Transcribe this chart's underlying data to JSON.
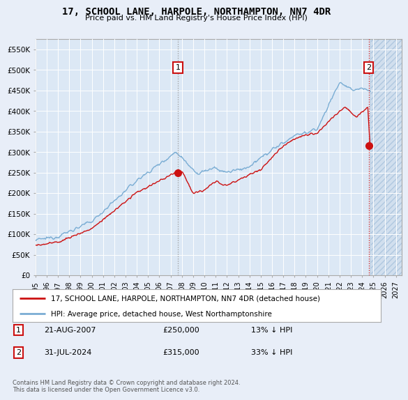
{
  "title": "17, SCHOOL LANE, HARPOLE, NORTHAMPTON, NN7 4DR",
  "subtitle": "Price paid vs. HM Land Registry's House Price Index (HPI)",
  "legend_line1": "17, SCHOOL LANE, HARPOLE, NORTHAMPTON, NN7 4DR (detached house)",
  "legend_line2": "HPI: Average price, detached house, West Northamptonshire",
  "annotation1_date": "21-AUG-2007",
  "annotation1_price": "£250,000",
  "annotation1_hpi": "13% ↓ HPI",
  "annotation1_year": 2007.64,
  "annotation1_value": 250000,
  "annotation2_date": "31-JUL-2024",
  "annotation2_price": "£315,000",
  "annotation2_hpi": "33% ↓ HPI",
  "annotation2_year": 2024.58,
  "annotation2_value": 315000,
  "hpi_color": "#7aadd4",
  "price_color": "#cc1111",
  "background_color": "#e8eef8",
  "plot_bg_color": "#dce8f5",
  "grid_color": "#ffffff",
  "ylim": [
    0,
    575000
  ],
  "xlim_start": 1995.0,
  "xlim_end": 2027.5,
  "footer": "Contains HM Land Registry data © Crown copyright and database right 2024.\nThis data is licensed under the Open Government Licence v3.0.",
  "yticks": [
    0,
    50000,
    100000,
    150000,
    200000,
    250000,
    300000,
    350000,
    400000,
    450000,
    500000,
    550000
  ],
  "ytick_labels": [
    "£0",
    "£50K",
    "£100K",
    "£150K",
    "£200K",
    "£250K",
    "£300K",
    "£350K",
    "£400K",
    "£450K",
    "£500K",
    "£550K"
  ],
  "xticks": [
    1995,
    1996,
    1997,
    1998,
    1999,
    2000,
    2001,
    2002,
    2003,
    2004,
    2005,
    2006,
    2007,
    2008,
    2009,
    2010,
    2011,
    2012,
    2013,
    2014,
    2015,
    2016,
    2017,
    2018,
    2019,
    2020,
    2021,
    2022,
    2023,
    2024,
    2025,
    2026,
    2027
  ]
}
